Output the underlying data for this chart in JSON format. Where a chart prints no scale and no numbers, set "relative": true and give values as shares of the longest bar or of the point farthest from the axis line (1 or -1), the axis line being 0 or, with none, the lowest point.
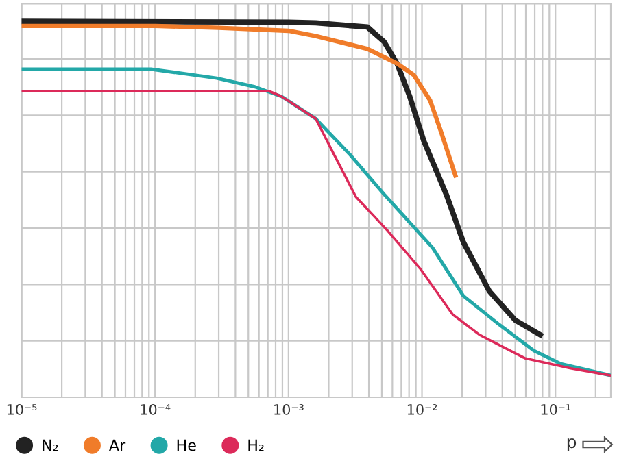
{
  "chart_data": {
    "type": "line",
    "relative": true,
    "log": "x",
    "xlabel": "p",
    "grid": true,
    "legend": "bottom left",
    "marker": "none",
    "line_style": "solid",
    "xlim": [
      1e-05,
      0.26
    ],
    "xticks": [
      {
        "value": 1e-05,
        "label": "10⁻⁵"
      },
      {
        "value": 0.0001,
        "label": "10⁻⁴"
      },
      {
        "value": 0.001,
        "label": "10⁻³"
      },
      {
        "value": 0.01,
        "label": "10⁻²"
      },
      {
        "value": 0.1,
        "label": "10⁻¹"
      }
    ],
    "series": [
      {
        "name": "N₂",
        "color": "#222222",
        "x": [
          1e-05,
          0.001,
          0.0016,
          0.0039,
          0.0052,
          0.0065,
          0.0081,
          0.0103,
          0.0152,
          0.0204,
          0.032,
          0.05,
          0.077
        ],
        "values": [
          1.0,
          0.998,
          0.996,
          0.985,
          0.946,
          0.888,
          0.8,
          0.683,
          0.54,
          0.413,
          0.282,
          0.205,
          0.166
        ]
      },
      {
        "name": "Ar",
        "color": "#f07c2a",
        "x": [
          1e-05,
          0.0001,
          0.0003,
          0.001,
          0.0016,
          0.0039,
          0.0065,
          0.0087,
          0.0115,
          0.014,
          0.0178
        ],
        "values": [
          0.988,
          0.988,
          0.983,
          0.975,
          0.961,
          0.927,
          0.888,
          0.857,
          0.79,
          0.703,
          0.59
        ]
      },
      {
        "name": "He",
        "color": "#23a8a8",
        "x": [
          1e-05,
          9.3e-05,
          0.00029,
          0.00056,
          0.00089,
          0.0016,
          0.0029,
          0.0052,
          0.012,
          0.0204,
          0.038,
          0.069,
          0.11,
          0.26
        ],
        "values": [
          0.873,
          0.873,
          0.849,
          0.826,
          0.8,
          0.741,
          0.645,
          0.54,
          0.398,
          0.27,
          0.193,
          0.124,
          0.089,
          0.058
        ]
      },
      {
        "name": "H₂",
        "color": "#dc2a5a",
        "x": [
          1e-05,
          0.00071,
          0.00089,
          0.0016,
          0.0022,
          0.0032,
          0.0055,
          0.0098,
          0.017,
          0.027,
          0.059,
          0.13,
          0.26
        ],
        "values": [
          0.815,
          0.815,
          0.8,
          0.741,
          0.645,
          0.533,
          0.444,
          0.34,
          0.22,
          0.166,
          0.104,
          0.077,
          0.058
        ]
      }
    ]
  }
}
